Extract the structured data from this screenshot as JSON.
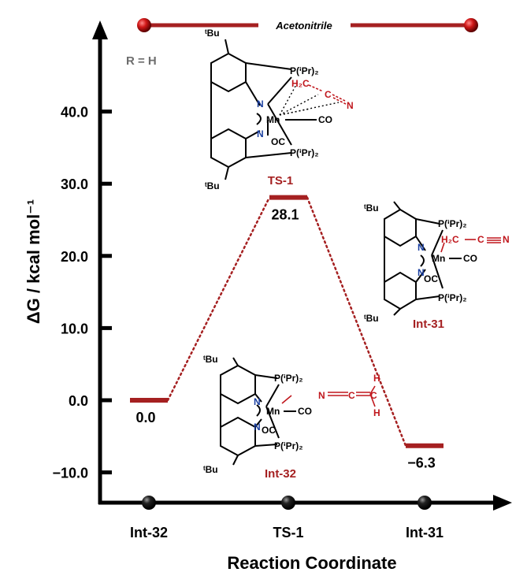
{
  "chart_data": {
    "type": "line",
    "title": "",
    "banner": "Acetonitrile",
    "substituent_label": "R = H",
    "xlabel": "Reaction Coordinate",
    "ylabel": "ΔG  / kcal mol⁻¹",
    "ylim": [
      -14,
      52
    ],
    "yticks": [
      -10,
      0,
      10,
      20,
      30,
      40
    ],
    "ytick_labels": [
      "−10.0",
      "0.0",
      "10.0",
      "20.0",
      "30.0",
      "40.0"
    ],
    "categories": [
      "Int-32",
      "TS-1",
      "Int-31"
    ],
    "values": [
      0.0,
      28.1,
      -6.3
    ],
    "value_labels": [
      "0.0",
      "28.1",
      "−6.3"
    ],
    "grid": false,
    "colors": {
      "level": "#a52021",
      "axis": "#000000",
      "highlight": "#c0171d"
    },
    "structures": [
      {
        "name": "TS-1",
        "label": "TS-1",
        "atoms": {
          "tbu_top": "ᵗBu",
          "tbu_bottom": "ᵗBu",
          "p_top": "P(ⁱPr)₂",
          "p_bottom": "P(ⁱPr)₂",
          "n1": "N",
          "n2": "N",
          "mn": "Mn",
          "co": "CO",
          "oc": "OC",
          "h2c": "H₂C",
          "c": "C",
          "n_nitrile": "N"
        }
      },
      {
        "name": "Int-31",
        "label": "Int-31",
        "atoms": {
          "tbu_top": "ᵗBu",
          "tbu_bottom": "ᵗBu",
          "p_top": "P(ⁱPr)₂",
          "p_bottom": "P(ⁱPr)₂",
          "n1": "N",
          "n2": "N",
          "mn": "Mn",
          "co": "CO",
          "oc": "OC",
          "h2c": "H₂C",
          "c": "C",
          "n_nitrile": "N"
        }
      },
      {
        "name": "Int-32",
        "label": "Int-32",
        "atoms": {
          "tbu_top": "ᵗBu",
          "tbu_bottom": "ᵗBu",
          "p_top": "P(ⁱPr)₂",
          "p_bottom": "P(ⁱPr)₂",
          "n1": "N",
          "n2": "N",
          "mn": "Mn",
          "co": "CO",
          "oc": "OC",
          "n_ket": "N",
          "c1": "C",
          "c2": "C",
          "h_top": "H",
          "h_bottom": "H"
        }
      }
    ]
  }
}
